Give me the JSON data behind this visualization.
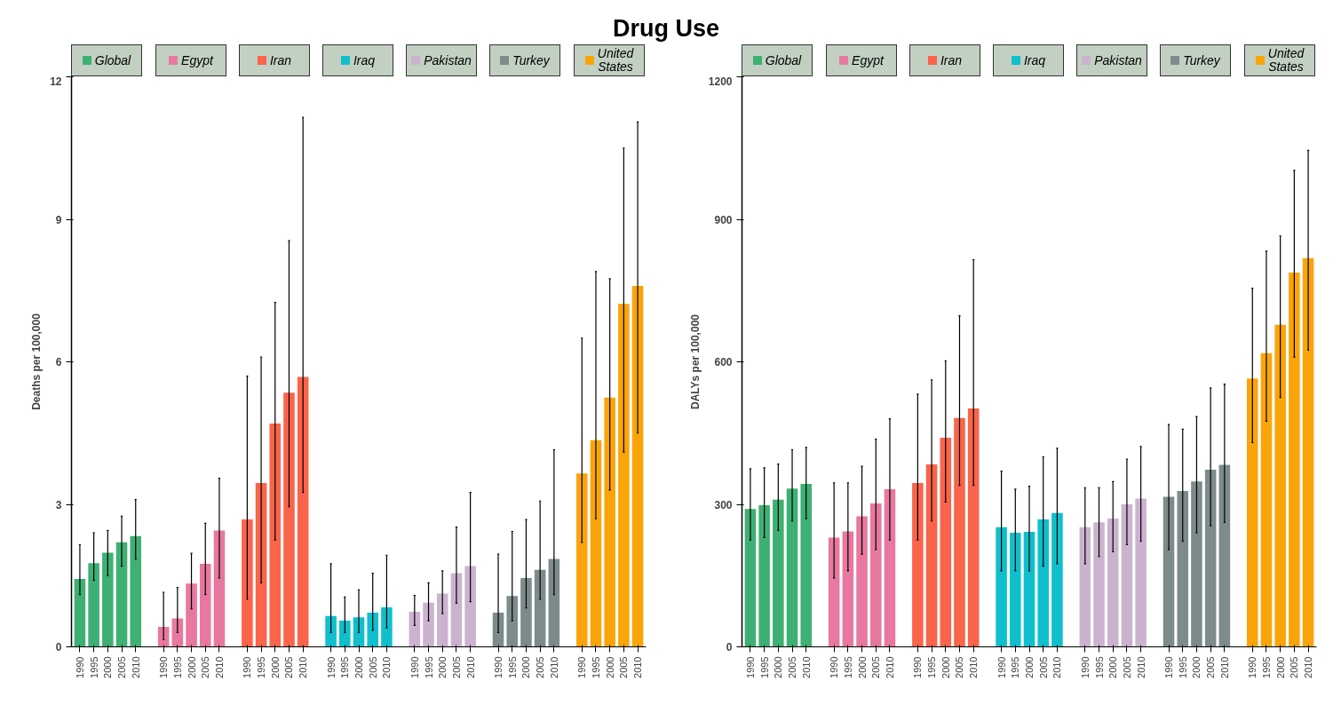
{
  "chart_data": [
    {
      "type": "bar",
      "legend": "top",
      "annotations": [
        "Drug Use"
      ],
      "ylabel": "Deaths per 100,000",
      "categories": [
        "1990",
        "1995",
        "2000",
        "2005",
        "2010",
        null,
        "1990",
        "1995",
        "2000",
        "2005",
        "2010",
        null,
        "1990",
        "1995",
        "2000",
        "2005",
        "2010",
        null,
        "1990",
        "1995",
        "2000",
        "2005",
        "2010",
        null,
        "1990",
        "1995",
        "2000",
        "2005",
        "2010",
        null,
        "1990",
        "1995",
        "2000",
        "2005",
        "2010",
        null,
        "1990",
        "1995",
        "2000",
        "2005",
        "2010"
      ],
      "ylim": [
        0,
        12
      ],
      "yticks": [
        0,
        3,
        6,
        9,
        12
      ],
      "series": [
        {
          "name": "Global",
          "color": "#3eb073",
          "values": [
            1.43,
            1.76,
            1.98,
            2.2,
            2.33,
            null,
            null,
            null,
            null,
            null,
            null,
            null,
            null,
            null,
            null,
            null,
            null,
            null,
            null,
            null,
            null,
            null,
            null,
            null,
            null,
            null,
            null,
            null,
            null,
            null,
            null,
            null,
            null,
            null,
            null,
            null,
            null,
            null,
            null,
            null,
            null
          ],
          "errors": [
            [
              1.1,
              2.15
            ],
            [
              1.4,
              2.4
            ],
            [
              1.5,
              2.45
            ],
            [
              1.7,
              2.75
            ],
            [
              1.85,
              3.1
            ],
            null,
            null,
            null,
            null,
            null,
            null,
            null,
            null,
            null,
            null,
            null,
            null,
            null,
            null,
            null,
            null,
            null,
            null,
            null,
            null,
            null,
            null,
            null,
            null,
            null,
            null,
            null,
            null,
            null,
            null,
            null,
            null,
            null,
            null,
            null,
            null
          ]
        },
        {
          "name": "Egypt",
          "color": "#e8789f",
          "values": [
            null,
            null,
            null,
            null,
            null,
            null,
            0.42,
            0.6,
            1.33,
            1.75,
            2.45,
            null,
            null,
            null,
            null,
            null,
            null,
            null,
            null,
            null,
            null,
            null,
            null,
            null,
            null,
            null,
            null,
            null,
            null,
            null,
            null,
            null,
            null,
            null,
            null,
            null,
            null,
            null,
            null,
            null,
            null
          ],
          "errors": [
            null,
            null,
            null,
            null,
            null,
            null,
            [
              0.15,
              1.15
            ],
            [
              0.3,
              1.25
            ],
            [
              0.8,
              1.97
            ],
            [
              1.1,
              2.6
            ],
            [
              1.45,
              3.55
            ],
            null,
            null,
            null,
            null,
            null,
            null,
            null,
            null,
            null,
            null,
            null,
            null,
            null,
            null,
            null,
            null,
            null,
            null,
            null,
            null,
            null,
            null,
            null,
            null,
            null,
            null,
            null,
            null,
            null,
            null
          ]
        },
        {
          "name": "Iran",
          "color": "#f9644a",
          "values": [
            null,
            null,
            null,
            null,
            null,
            null,
            null,
            null,
            null,
            null,
            null,
            null,
            2.68,
            3.45,
            4.7,
            5.35,
            5.68,
            null,
            null,
            null,
            null,
            null,
            null,
            null,
            null,
            null,
            null,
            null,
            null,
            null,
            null,
            null,
            null,
            null,
            null,
            null,
            null,
            null,
            null,
            null,
            null
          ],
          "errors": [
            null,
            null,
            null,
            null,
            null,
            null,
            null,
            null,
            null,
            null,
            null,
            null,
            [
              1.0,
              5.7
            ],
            [
              1.35,
              6.1
            ],
            [
              2.25,
              7.25
            ],
            [
              2.95,
              8.55
            ],
            [
              3.25,
              11.15
            ],
            null,
            null,
            null,
            null,
            null,
            null,
            null,
            null,
            null,
            null,
            null,
            null,
            null,
            null,
            null,
            null,
            null,
            null,
            null,
            null,
            null,
            null,
            null,
            null
          ]
        },
        {
          "name": "Iraq",
          "color": "#0fbfcc",
          "values": [
            null,
            null,
            null,
            null,
            null,
            null,
            null,
            null,
            null,
            null,
            null,
            null,
            null,
            null,
            null,
            null,
            null,
            null,
            0.65,
            0.55,
            0.62,
            0.72,
            0.83,
            null,
            null,
            null,
            null,
            null,
            null,
            null,
            null,
            null,
            null,
            null,
            null,
            null,
            null,
            null,
            null,
            null,
            null
          ],
          "errors": [
            null,
            null,
            null,
            null,
            null,
            null,
            null,
            null,
            null,
            null,
            null,
            null,
            null,
            null,
            null,
            null,
            null,
            null,
            [
              0.3,
              1.75
            ],
            [
              0.3,
              1.05
            ],
            [
              0.3,
              1.2
            ],
            [
              0.35,
              1.55
            ],
            [
              0.4,
              1.93
            ],
            null,
            null,
            null,
            null,
            null,
            null,
            null,
            null,
            null,
            null,
            null,
            null,
            null,
            null,
            null,
            null,
            null,
            null
          ]
        },
        {
          "name": "Pakistan",
          "color": "#cbb3cf",
          "values": [
            null,
            null,
            null,
            null,
            null,
            null,
            null,
            null,
            null,
            null,
            null,
            null,
            null,
            null,
            null,
            null,
            null,
            null,
            null,
            null,
            null,
            null,
            null,
            null,
            0.74,
            0.93,
            1.12,
            1.55,
            1.7,
            null,
            null,
            null,
            null,
            null,
            null,
            null,
            null,
            null,
            null,
            null,
            null
          ],
          "errors": [
            null,
            null,
            null,
            null,
            null,
            null,
            null,
            null,
            null,
            null,
            null,
            null,
            null,
            null,
            null,
            null,
            null,
            null,
            null,
            null,
            null,
            null,
            null,
            null,
            [
              0.45,
              1.08
            ],
            [
              0.55,
              1.35
            ],
            [
              0.7,
              1.6
            ],
            [
              0.92,
              2.52
            ],
            [
              0.95,
              3.25
            ],
            null,
            null,
            null,
            null,
            null,
            null,
            null,
            null,
            null,
            null,
            null,
            null
          ]
        },
        {
          "name": "Turkey",
          "color": "#7d8b8b",
          "values": [
            null,
            null,
            null,
            null,
            null,
            null,
            null,
            null,
            null,
            null,
            null,
            null,
            null,
            null,
            null,
            null,
            null,
            null,
            null,
            null,
            null,
            null,
            null,
            null,
            null,
            null,
            null,
            null,
            null,
            null,
            0.72,
            1.07,
            1.45,
            1.62,
            1.85,
            null,
            null,
            null,
            null,
            null,
            null
          ],
          "errors": [
            null,
            null,
            null,
            null,
            null,
            null,
            null,
            null,
            null,
            null,
            null,
            null,
            null,
            null,
            null,
            null,
            null,
            null,
            null,
            null,
            null,
            null,
            null,
            null,
            null,
            null,
            null,
            null,
            null,
            null,
            [
              0.3,
              1.95
            ],
            [
              0.55,
              2.43
            ],
            [
              0.82,
              2.68
            ],
            [
              1.0,
              3.07
            ],
            [
              1.1,
              4.15
            ],
            null,
            null,
            null,
            null,
            null,
            null
          ]
        },
        {
          "name": "United States",
          "color": "#fba40a",
          "values": [
            null,
            null,
            null,
            null,
            null,
            null,
            null,
            null,
            null,
            null,
            null,
            null,
            null,
            null,
            null,
            null,
            null,
            null,
            null,
            null,
            null,
            null,
            null,
            null,
            null,
            null,
            null,
            null,
            null,
            null,
            null,
            null,
            null,
            null,
            null,
            null,
            3.65,
            4.35,
            5.25,
            7.22,
            7.6
          ],
          "errors": [
            null,
            null,
            null,
            null,
            null,
            null,
            null,
            null,
            null,
            null,
            null,
            null,
            null,
            null,
            null,
            null,
            null,
            null,
            null,
            null,
            null,
            null,
            null,
            null,
            null,
            null,
            null,
            null,
            null,
            null,
            null,
            null,
            null,
            null,
            null,
            null,
            [
              2.2,
              6.5
            ],
            [
              2.7,
              7.9
            ],
            [
              3.3,
              7.75
            ],
            [
              4.1,
              10.5
            ],
            [
              4.5,
              11.05
            ]
          ]
        }
      ]
    },
    {
      "type": "bar",
      "legend": "top",
      "ylabel": "DALYs per 100,000",
      "categories": [
        "1990",
        "1995",
        "2000",
        "2005",
        "2010",
        null,
        "1990",
        "1995",
        "2000",
        "2005",
        "2010",
        null,
        "1990",
        "1995",
        "2000",
        "2005",
        "2010",
        null,
        "1990",
        "1995",
        "2000",
        "2005",
        "2010",
        null,
        "1990",
        "1995",
        "2000",
        "2005",
        "2010",
        null,
        "1990",
        "1995",
        "2000",
        "2005",
        "2010",
        null,
        "1990",
        "1995",
        "2000",
        "2005",
        "2010"
      ],
      "ylim": [
        0,
        1200
      ],
      "yticks": [
        0,
        300,
        600,
        900,
        1200
      ],
      "series": [
        {
          "name": "Global",
          "color": "#3eb073",
          "values": [
            290,
            298,
            310,
            333,
            343,
            null,
            null,
            null,
            null,
            null,
            null,
            null,
            null,
            null,
            null,
            null,
            null,
            null,
            null,
            null,
            null,
            null,
            null,
            null,
            null,
            null,
            null,
            null,
            null,
            null,
            null,
            null,
            null,
            null,
            null,
            null,
            null,
            null,
            null,
            null,
            null
          ],
          "errors": [
            [
              225,
              375
            ],
            [
              230,
              377
            ],
            [
              245,
              385
            ],
            [
              265,
              415
            ],
            [
              270,
              420
            ],
            null,
            null,
            null,
            null,
            null,
            null,
            null,
            null,
            null,
            null,
            null,
            null,
            null,
            null,
            null,
            null,
            null,
            null,
            null,
            null,
            null,
            null,
            null,
            null,
            null,
            null,
            null,
            null,
            null,
            null,
            null,
            null,
            null,
            null,
            null,
            null
          ]
        },
        {
          "name": "Egypt",
          "color": "#e8789f",
          "values": [
            null,
            null,
            null,
            null,
            null,
            null,
            230,
            243,
            275,
            302,
            332,
            null,
            null,
            null,
            null,
            null,
            null,
            null,
            null,
            null,
            null,
            null,
            null,
            null,
            null,
            null,
            null,
            null,
            null,
            null,
            null,
            null,
            null,
            null,
            null,
            null,
            null,
            null,
            null,
            null,
            null
          ],
          "errors": [
            null,
            null,
            null,
            null,
            null,
            null,
            [
              145,
              345
            ],
            [
              160,
              345
            ],
            [
              195,
              380
            ],
            [
              205,
              437
            ],
            [
              225,
              480
            ],
            null,
            null,
            null,
            null,
            null,
            null,
            null,
            null,
            null,
            null,
            null,
            null,
            null,
            null,
            null,
            null,
            null,
            null,
            null,
            null,
            null,
            null,
            null,
            null,
            null,
            null,
            null,
            null,
            null,
            null
          ]
        },
        {
          "name": "Iran",
          "color": "#f9644a",
          "values": [
            null,
            null,
            null,
            null,
            null,
            null,
            null,
            null,
            null,
            null,
            null,
            null,
            345,
            384,
            440,
            482,
            502,
            null,
            null,
            null,
            null,
            null,
            null,
            null,
            null,
            null,
            null,
            null,
            null,
            null,
            null,
            null,
            null,
            null,
            null,
            null,
            null,
            null,
            null,
            null,
            null
          ],
          "errors": [
            null,
            null,
            null,
            null,
            null,
            null,
            null,
            null,
            null,
            null,
            null,
            null,
            [
              225,
              532
            ],
            [
              265,
              562
            ],
            [
              305,
              602
            ],
            [
              340,
              697
            ],
            [
              340,
              815
            ],
            null,
            null,
            null,
            null,
            null,
            null,
            null,
            null,
            null,
            null,
            null,
            null,
            null,
            null,
            null,
            null,
            null,
            null,
            null,
            null,
            null,
            null,
            null,
            null
          ]
        },
        {
          "name": "Iraq",
          "color": "#0fbfcc",
          "values": [
            null,
            null,
            null,
            null,
            null,
            null,
            null,
            null,
            null,
            null,
            null,
            null,
            null,
            null,
            null,
            null,
            null,
            null,
            252,
            240,
            242,
            268,
            282,
            null,
            null,
            null,
            null,
            null,
            null,
            null,
            null,
            null,
            null,
            null,
            null,
            null,
            null,
            null,
            null,
            null,
            null
          ],
          "errors": [
            null,
            null,
            null,
            null,
            null,
            null,
            null,
            null,
            null,
            null,
            null,
            null,
            null,
            null,
            null,
            null,
            null,
            null,
            [
              160,
              370
            ],
            [
              160,
              332
            ],
            [
              160,
              338
            ],
            [
              170,
              400
            ],
            [
              175,
              418
            ],
            null,
            null,
            null,
            null,
            null,
            null,
            null,
            null,
            null,
            null,
            null,
            null,
            null,
            null,
            null,
            null,
            null,
            null
          ]
        },
        {
          "name": "Pakistan",
          "color": "#cbb3cf",
          "values": [
            null,
            null,
            null,
            null,
            null,
            null,
            null,
            null,
            null,
            null,
            null,
            null,
            null,
            null,
            null,
            null,
            null,
            null,
            null,
            null,
            null,
            null,
            null,
            null,
            252,
            262,
            270,
            300,
            312,
            null,
            null,
            null,
            null,
            null,
            null,
            null,
            null,
            null,
            null,
            null,
            null
          ],
          "errors": [
            null,
            null,
            null,
            null,
            null,
            null,
            null,
            null,
            null,
            null,
            null,
            null,
            null,
            null,
            null,
            null,
            null,
            null,
            null,
            null,
            null,
            null,
            null,
            null,
            [
              175,
              335
            ],
            [
              190,
              335
            ],
            [
              200,
              348
            ],
            [
              215,
              395
            ],
            [
              222,
              422
            ],
            null,
            null,
            null,
            null,
            null,
            null,
            null,
            null,
            null,
            null,
            null,
            null
          ]
        },
        {
          "name": "Turkey",
          "color": "#7d8b8b",
          "values": [
            null,
            null,
            null,
            null,
            null,
            null,
            null,
            null,
            null,
            null,
            null,
            null,
            null,
            null,
            null,
            null,
            null,
            null,
            null,
            null,
            null,
            null,
            null,
            null,
            null,
            null,
            null,
            null,
            null,
            null,
            316,
            328,
            348,
            373,
            383,
            null,
            null,
            null,
            null,
            null,
            null
          ],
          "errors": [
            null,
            null,
            null,
            null,
            null,
            null,
            null,
            null,
            null,
            null,
            null,
            null,
            null,
            null,
            null,
            null,
            null,
            null,
            null,
            null,
            null,
            null,
            null,
            null,
            null,
            null,
            null,
            null,
            null,
            null,
            [
              205,
              468
            ],
            [
              222,
              458
            ],
            [
              240,
              485
            ],
            [
              255,
              545
            ],
            [
              262,
              553
            ],
            null,
            null,
            null,
            null,
            null,
            null
          ]
        },
        {
          "name": "United States",
          "color": "#fba40a",
          "values": [
            null,
            null,
            null,
            null,
            null,
            null,
            null,
            null,
            null,
            null,
            null,
            null,
            null,
            null,
            null,
            null,
            null,
            null,
            null,
            null,
            null,
            null,
            null,
            null,
            null,
            null,
            null,
            null,
            null,
            null,
            null,
            null,
            null,
            null,
            null,
            null,
            565,
            618,
            678,
            788,
            818
          ],
          "errors": [
            null,
            null,
            null,
            null,
            null,
            null,
            null,
            null,
            null,
            null,
            null,
            null,
            null,
            null,
            null,
            null,
            null,
            null,
            null,
            null,
            null,
            null,
            null,
            null,
            null,
            null,
            null,
            null,
            null,
            null,
            null,
            null,
            null,
            null,
            null,
            null,
            [
              430,
              755
            ],
            [
              475,
              833
            ],
            [
              525,
              865
            ],
            [
              610,
              1003
            ],
            [
              625,
              1045
            ]
          ]
        }
      ]
    }
  ]
}
